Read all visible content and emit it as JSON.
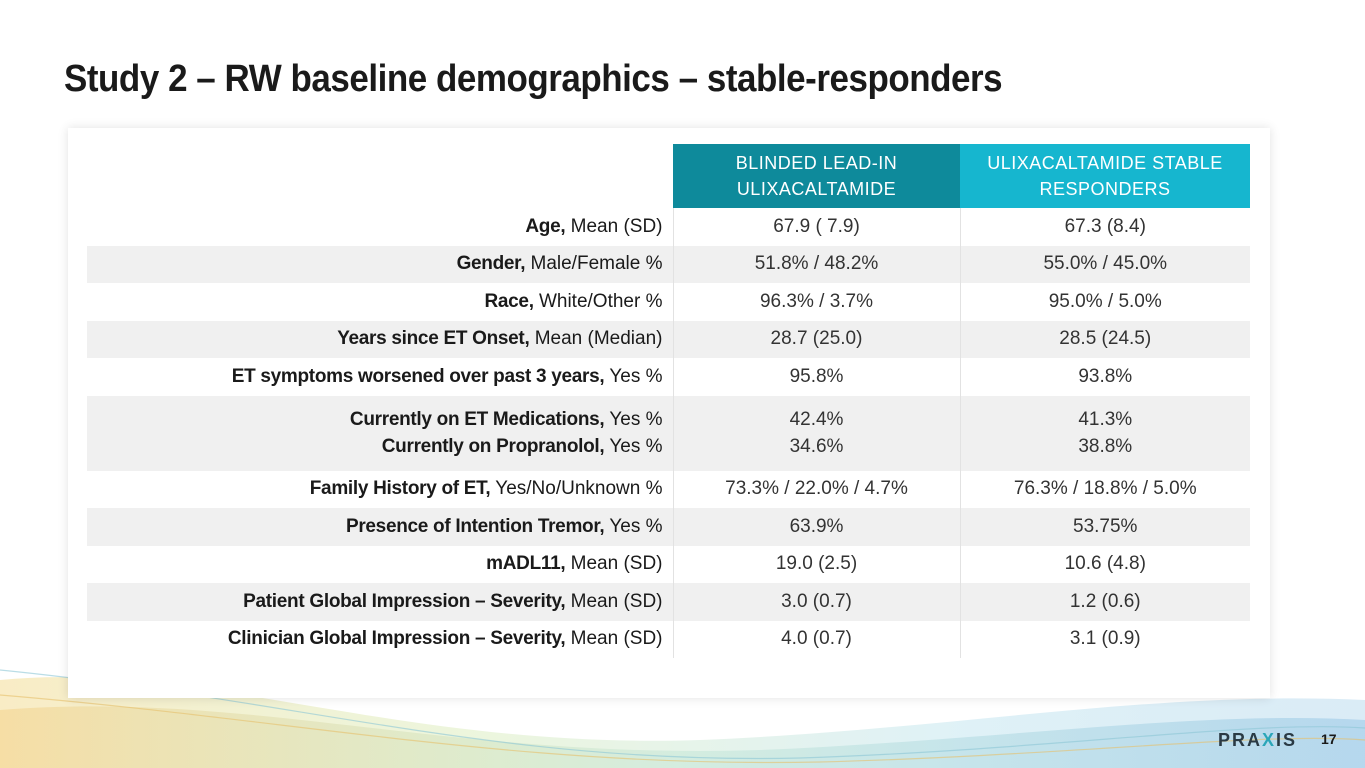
{
  "title": "Study 2 – RW baseline demographics – stable-responders",
  "table": {
    "headers": {
      "col_a": "BLINDED LEAD-IN ULIXACALTAMIDE",
      "col_b": "ULIXACALTAMIDE STABLE RESPONDERS"
    },
    "rows": [
      {
        "label_bold": "Age,",
        "label_rest": " Mean (SD)",
        "a": "67.9 ( 7.9)",
        "b": "67.3 (8.4)"
      },
      {
        "label_bold": "Gender,",
        "label_rest": " Male/Female %",
        "a": "51.8% / 48.2%",
        "b": "55.0% / 45.0%"
      },
      {
        "label_bold": "Race,",
        "label_rest": " White/Other %",
        "a": "96.3% / 3.7%",
        "b": "95.0% / 5.0%"
      },
      {
        "label_bold": "Years since ET Onset,",
        "label_rest": " Mean (Median)",
        "a": "28.7 (25.0)",
        "b": "28.5 (24.5)"
      },
      {
        "label_bold": "ET symptoms worsened over past 3 years,",
        "label_rest": " Yes %",
        "a": "95.8%",
        "b": "93.8%"
      },
      {
        "label_bold": "Currently on ET Medications,",
        "label_rest": " Yes %",
        "label2_bold": "Currently on Propranolol,",
        "label2_rest": " Yes %",
        "a": "42.4%",
        "a2": "34.6%",
        "b": "41.3%",
        "b2": "38.8%"
      },
      {
        "label_bold": "Family History of ET,",
        "label_rest": " Yes/No/Unknown %",
        "a": "73.3% / 22.0% / 4.7%",
        "b": "76.3% / 18.8% / 5.0%"
      },
      {
        "label_bold": "Presence of Intention Tremor,",
        "label_rest": " Yes %",
        "a": "63.9%",
        "b": "53.75%"
      },
      {
        "label_bold": "mADL11,",
        "label_rest": " Mean (SD)",
        "a": "19.0 (2.5)",
        "b": "10.6 (4.8)"
      },
      {
        "label_bold": "Patient Global Impression – Severity,",
        "label_rest": " Mean (SD)",
        "a": "3.0 (0.7)",
        "b": "1.2 (0.6)"
      },
      {
        "label_bold": "Clinician Global Impression – Severity,",
        "label_rest": " Mean (SD)",
        "a": "4.0 (0.7)",
        "b": "3.1 (0.9)"
      }
    ]
  },
  "footer": {
    "logo_left": "PRA",
    "logo_x": "X",
    "logo_right": "IS",
    "page_number": "17"
  },
  "colors": {
    "header_a": "#0e8a9b",
    "header_b": "#16b6cf",
    "row_shade": "#f0f0f0"
  }
}
